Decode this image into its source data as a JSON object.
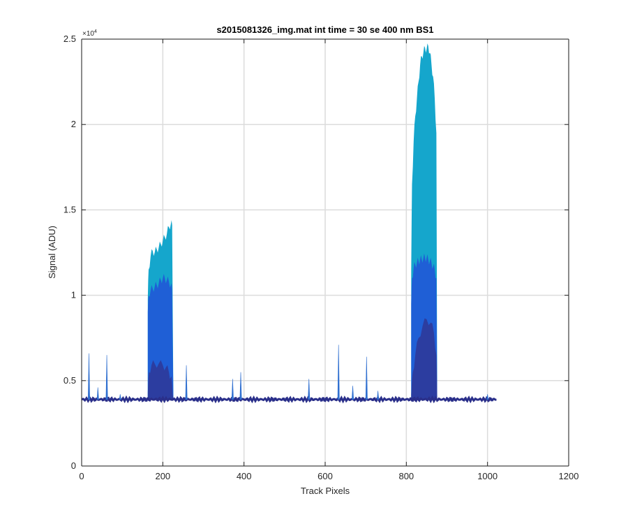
{
  "chart_data": {
    "type": "area",
    "title": "s2015081326_img.mat int time = 30 se  400 nm BS1",
    "xlabel": "Track Pixels",
    "ylabel": "Signal (ADU)",
    "y_exponent_label": "×10",
    "y_exponent_power": "4",
    "xlim": [
      0,
      1200
    ],
    "ylim": [
      0,
      25000
    ],
    "xticks": [
      0,
      200,
      400,
      600,
      800,
      1000,
      1200
    ],
    "xtick_labels": [
      "0",
      "200",
      "400",
      "600",
      "800",
      "1000",
      "1200"
    ],
    "yticks": [
      0,
      5000,
      10000,
      15000,
      20000,
      25000
    ],
    "ytick_labels": [
      "0",
      "0.5",
      "1",
      "1.5",
      "2",
      "2.5"
    ],
    "grid": true,
    "baseline": {
      "x_start": 0,
      "x_end": 1023,
      "level": 3900
    },
    "bands": [
      {
        "name": "top",
        "color": "#15A6CC",
        "segments": [
          {
            "x": [
              163,
              165,
              170,
              175,
              180,
              185,
              190,
              195,
              200,
              205,
              210,
              215,
              220,
              223,
              226
            ],
            "y": [
              9800,
              11500,
              12300,
              12600,
              12500,
              12700,
              12800,
              13000,
              13200,
              13400,
              13600,
              14000,
              14200,
              14100,
              4000
            ]
          },
          {
            "x": [
              812,
              814,
              818,
              822,
              826,
              830,
              834,
              838,
              842,
              846,
              850,
              854,
              858,
              862,
              866,
              870,
              874,
              876
            ],
            "y": [
              11500,
              16500,
              19000,
              20500,
              21500,
              22500,
              23500,
              24000,
              24200,
              24500,
              24400,
              24600,
              24200,
              23500,
              22800,
              21500,
              19500,
              4000
            ]
          }
        ]
      },
      {
        "name": "middle",
        "color": "#1F5FD6",
        "segments": [
          {
            "x": [
              163,
              165,
              170,
              175,
              180,
              185,
              190,
              195,
              200,
              205,
              210,
              215,
              220,
              223,
              226
            ],
            "y": [
              9000,
              10000,
              10300,
              10400,
              10500,
              10600,
              10700,
              10900,
              11000,
              11000,
              10900,
              10800,
              10600,
              10300,
              4000
            ]
          },
          {
            "x": [
              812,
              814,
              818,
              822,
              826,
              830,
              834,
              838,
              842,
              846,
              850,
              854,
              858,
              862,
              866,
              870,
              874,
              876
            ],
            "y": [
              9500,
              11000,
              11600,
              11800,
              11900,
              12000,
              12100,
              12100,
              12200,
              12200,
              12200,
              12100,
              12000,
              11900,
              11700,
              11500,
              11000,
              4000
            ]
          }
        ]
      },
      {
        "name": "bottom",
        "color": "#2C3DA0",
        "segments": [
          {
            "x": [
              163,
              166,
              172,
              180,
              190,
              200,
              208,
              215,
              220,
              223,
              226
            ],
            "y": [
              4300,
              5500,
              5900,
              6000,
              6000,
              5900,
              5800,
              5500,
              5200,
              4800,
              4000
            ]
          },
          {
            "x": [
              812,
              816,
              822,
              830,
              840,
              850,
              860,
              868,
              874,
              876
            ],
            "y": [
              4200,
              5500,
              6500,
              7500,
              8200,
              8600,
              8400,
              7800,
              6500,
              4000
            ]
          }
        ]
      }
    ],
    "spikes": [
      {
        "x": 18,
        "y": 6600
      },
      {
        "x": 40,
        "y": 4600
      },
      {
        "x": 62,
        "y": 6500
      },
      {
        "x": 95,
        "y": 4200
      },
      {
        "x": 258,
        "y": 5900
      },
      {
        "x": 372,
        "y": 5100
      },
      {
        "x": 392,
        "y": 5500
      },
      {
        "x": 560,
        "y": 5100
      },
      {
        "x": 633,
        "y": 7100
      },
      {
        "x": 668,
        "y": 4700
      },
      {
        "x": 702,
        "y": 6400
      },
      {
        "x": 730,
        "y": 4400
      },
      {
        "x": 1000,
        "y": 4200
      }
    ],
    "line_color": "#2A2F8A"
  }
}
